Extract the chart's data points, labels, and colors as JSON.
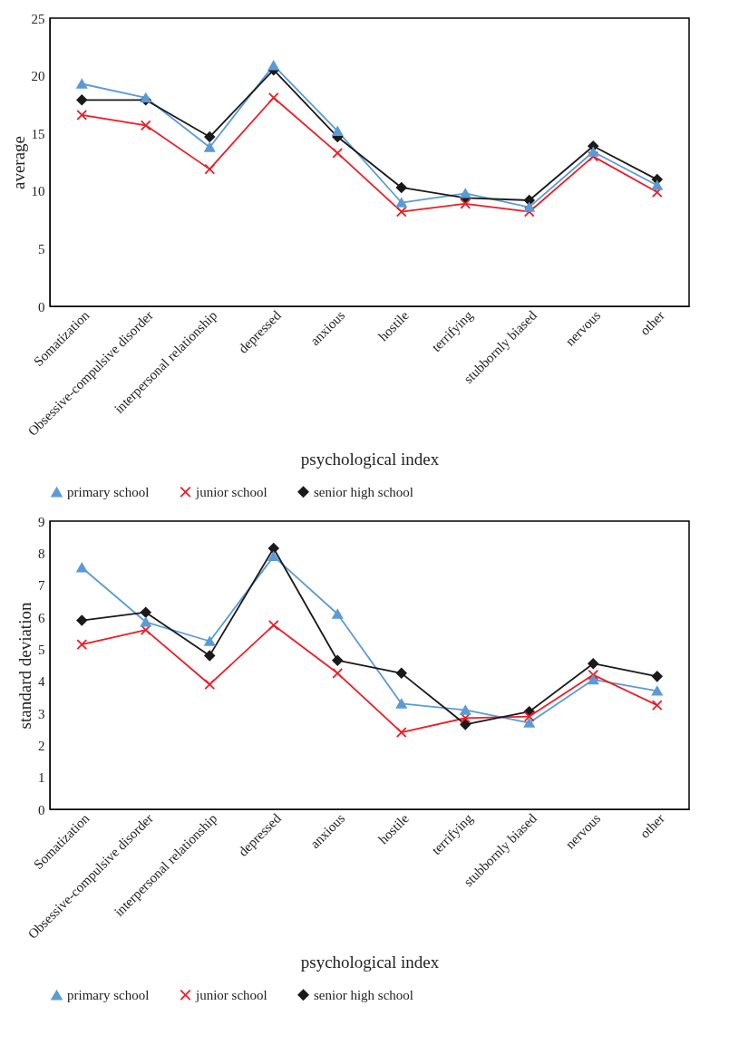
{
  "chart_data": [
    {
      "type": "line",
      "xlabel": "psychological index",
      "ylabel": "average",
      "categories": [
        "Somatization",
        "Obsessive-compulsive disorder",
        "interpersonal relationship",
        "depressed",
        "anxious",
        "hostile",
        "terrifying",
        "stubbornly biased",
        "nervous",
        "other"
      ],
      "ylim": [
        0,
        25
      ],
      "yticks": [
        0,
        5,
        10,
        15,
        20,
        25
      ],
      "grid": false,
      "legend": "bottom",
      "series": [
        {
          "name": "primary school",
          "color": "#5b9bd5",
          "marker": "triangle",
          "values": [
            19.3,
            18.1,
            13.8,
            20.9,
            15.2,
            9.0,
            9.8,
            8.6,
            13.4,
            10.5
          ]
        },
        {
          "name": "junior school",
          "color": "#ee1c25",
          "marker": "cross",
          "values": [
            16.6,
            15.7,
            11.9,
            18.1,
            13.3,
            8.2,
            8.9,
            8.2,
            13.0,
            9.9
          ]
        },
        {
          "name": "senior high school",
          "color": "#1a1a1a",
          "marker": "diamond",
          "values": [
            17.9,
            17.9,
            14.7,
            20.5,
            14.7,
            10.3,
            9.4,
            9.2,
            13.9,
            11.0
          ]
        }
      ]
    },
    {
      "type": "line",
      "xlabel": "psychological index",
      "ylabel": "standard deviation",
      "categories": [
        "Somatization",
        "Obsessive-compulsive disorder",
        "interpersonal relationship",
        "depressed",
        "anxious",
        "hostile",
        "terrifying",
        "stubbornly biased",
        "nervous",
        "other"
      ],
      "ylim": [
        0,
        9
      ],
      "yticks": [
        0,
        1,
        2,
        3,
        4,
        5,
        6,
        7,
        8,
        9
      ],
      "grid": false,
      "legend": "bottom",
      "series": [
        {
          "name": "primary school",
          "color": "#5b9bd5",
          "marker": "triangle",
          "values": [
            7.55,
            5.85,
            5.25,
            7.9,
            6.1,
            3.3,
            3.1,
            2.7,
            4.05,
            3.7
          ]
        },
        {
          "name": "junior school",
          "color": "#ee1c25",
          "marker": "cross",
          "values": [
            5.15,
            5.6,
            3.9,
            5.75,
            4.25,
            2.4,
            2.85,
            2.9,
            4.2,
            3.25
          ]
        },
        {
          "name": "senior high school",
          "color": "#1a1a1a",
          "marker": "diamond",
          "values": [
            5.9,
            6.15,
            4.8,
            8.15,
            4.65,
            4.25,
            2.65,
            3.05,
            4.55,
            4.15
          ]
        }
      ]
    }
  ]
}
